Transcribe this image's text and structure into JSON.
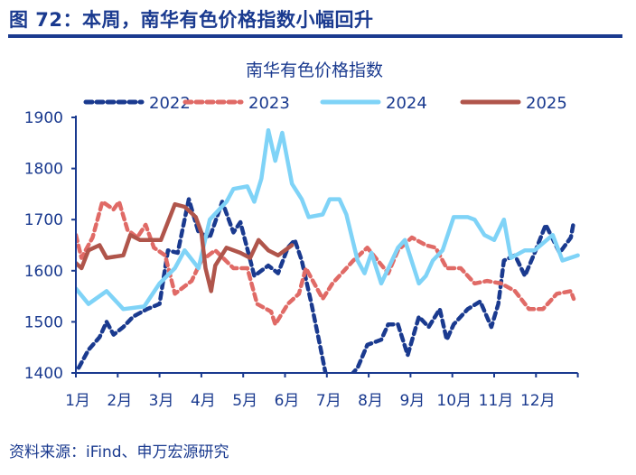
{
  "figure_title": "图 72：本周，南华有色价格指数小幅回升",
  "source": "资料来源：iFind、申万宏源研究",
  "chart_data": {
    "type": "line",
    "title": "南华有色价格指数",
    "xlabel": "",
    "ylabel": "",
    "x_tick_labels": [
      "1月",
      "2月",
      "3月",
      "4月",
      "5月",
      "6月",
      "7月",
      "8月",
      "9月",
      "10月",
      "11月",
      "12月"
    ],
    "y_ticks": [
      1400,
      1500,
      1600,
      1700,
      1800,
      1900
    ],
    "ylim": [
      1400,
      1900
    ],
    "grid": false,
    "legend_position": "top",
    "series": [
      {
        "name": "2022",
        "color": "#1a3a8f",
        "style": "dashed",
        "points": [
          [
            "01-03",
            1410
          ],
          [
            "01-10",
            1445
          ],
          [
            "01-18",
            1470
          ],
          [
            "01-23",
            1500
          ],
          [
            "01-28",
            1475
          ],
          [
            "02-05",
            1490
          ],
          [
            "02-12",
            1510
          ],
          [
            "02-22",
            1525
          ],
          [
            "03-01",
            1535
          ],
          [
            "03-07",
            1640
          ],
          [
            "03-14",
            1635
          ],
          [
            "03-22",
            1740
          ],
          [
            "03-29",
            1675
          ],
          [
            "04-07",
            1665
          ],
          [
            "04-16",
            1735
          ],
          [
            "04-24",
            1675
          ],
          [
            "04-29",
            1695
          ],
          [
            "05-09",
            1590
          ],
          [
            "05-19",
            1610
          ],
          [
            "05-26",
            1595
          ],
          [
            "06-03",
            1645
          ],
          [
            "06-08",
            1660
          ],
          [
            "06-13",
            1620
          ],
          [
            "06-20",
            1535
          ],
          [
            "06-26",
            1455
          ],
          [
            "06-30",
            1400
          ],
          [
            "07-10",
            1370
          ],
          [
            "07-23",
            1410
          ],
          [
            "07-30",
            1455
          ],
          [
            "08-10",
            1465
          ],
          [
            "08-15",
            1495
          ],
          [
            "08-22",
            1495
          ],
          [
            "08-29",
            1435
          ],
          [
            "09-07",
            1510
          ],
          [
            "09-14",
            1490
          ],
          [
            "09-22",
            1525
          ],
          [
            "09-27",
            1465
          ],
          [
            "10-02",
            1495
          ],
          [
            "10-12",
            1525
          ],
          [
            "10-21",
            1540
          ],
          [
            "10-29",
            1490
          ],
          [
            "11-04",
            1535
          ],
          [
            "11-08",
            1620
          ],
          [
            "11-16",
            1630
          ],
          [
            "11-23",
            1590
          ],
          [
            "11-30",
            1635
          ],
          [
            "12-08",
            1690
          ],
          [
            "12-18",
            1635
          ],
          [
            "12-26",
            1665
          ],
          [
            "12-28",
            1695
          ]
        ]
      },
      {
        "name": "2023",
        "color": "#e06a66",
        "style": "dashed",
        "points": [
          [
            "01-01",
            1670
          ],
          [
            "01-05",
            1625
          ],
          [
            "01-13",
            1665
          ],
          [
            "01-20",
            1735
          ],
          [
            "01-28",
            1720
          ],
          [
            "02-02",
            1735
          ],
          [
            "02-08",
            1680
          ],
          [
            "02-15",
            1665
          ],
          [
            "02-21",
            1690
          ],
          [
            "02-27",
            1645
          ],
          [
            "03-05",
            1630
          ],
          [
            "03-12",
            1555
          ],
          [
            "03-24",
            1580
          ],
          [
            "04-01",
            1620
          ],
          [
            "04-11",
            1640
          ],
          [
            "04-24",
            1605
          ],
          [
            "05-04",
            1605
          ],
          [
            "05-11",
            1535
          ],
          [
            "05-21",
            1520
          ],
          [
            "05-24",
            1495
          ],
          [
            "06-03",
            1535
          ],
          [
            "06-11",
            1555
          ],
          [
            "06-16",
            1605
          ],
          [
            "06-28",
            1545
          ],
          [
            "07-05",
            1575
          ],
          [
            "07-20",
            1620
          ],
          [
            "07-30",
            1645
          ],
          [
            "08-15",
            1595
          ],
          [
            "08-22",
            1640
          ],
          [
            "09-02",
            1665
          ],
          [
            "09-12",
            1650
          ],
          [
            "09-19",
            1645
          ],
          [
            "09-27",
            1605
          ],
          [
            "10-07",
            1605
          ],
          [
            "10-17",
            1575
          ],
          [
            "10-26",
            1580
          ],
          [
            "11-06",
            1575
          ],
          [
            "11-16",
            1560
          ],
          [
            "11-26",
            1525
          ],
          [
            "12-06",
            1525
          ],
          [
            "12-16",
            1555
          ],
          [
            "12-26",
            1560
          ],
          [
            "12-28",
            1545
          ]
        ]
      },
      {
        "name": "2024",
        "color": "#7fd3f7",
        "style": "solid",
        "points": [
          [
            "01-01",
            1565
          ],
          [
            "01-10",
            1535
          ],
          [
            "01-23",
            1560
          ],
          [
            "02-05",
            1525
          ],
          [
            "02-20",
            1530
          ],
          [
            "03-01",
            1575
          ],
          [
            "03-12",
            1605
          ],
          [
            "03-19",
            1640
          ],
          [
            "03-29",
            1605
          ],
          [
            "04-07",
            1700
          ],
          [
            "04-19",
            1735
          ],
          [
            "04-24",
            1760
          ],
          [
            "05-04",
            1765
          ],
          [
            "05-09",
            1735
          ],
          [
            "05-14",
            1780
          ],
          [
            "05-19",
            1875
          ],
          [
            "05-24",
            1815
          ],
          [
            "05-29",
            1870
          ],
          [
            "06-06",
            1770
          ],
          [
            "06-13",
            1740
          ],
          [
            "06-18",
            1705
          ],
          [
            "06-28",
            1710
          ],
          [
            "07-03",
            1740
          ],
          [
            "07-10",
            1740
          ],
          [
            "07-15",
            1710
          ],
          [
            "07-23",
            1620
          ],
          [
            "07-28",
            1595
          ],
          [
            "08-03",
            1635
          ],
          [
            "08-10",
            1575
          ],
          [
            "08-22",
            1645
          ],
          [
            "08-27",
            1660
          ],
          [
            "09-07",
            1575
          ],
          [
            "09-12",
            1590
          ],
          [
            "09-17",
            1620
          ],
          [
            "09-24",
            1640
          ],
          [
            "10-02",
            1705
          ],
          [
            "10-12",
            1705
          ],
          [
            "10-17",
            1700
          ],
          [
            "10-24",
            1670
          ],
          [
            "11-01",
            1660
          ],
          [
            "11-08",
            1700
          ],
          [
            "11-13",
            1625
          ],
          [
            "11-23",
            1640
          ],
          [
            "11-30",
            1640
          ],
          [
            "12-13",
            1670
          ],
          [
            "12-20",
            1620
          ],
          [
            "12-31",
            1630
          ]
        ]
      },
      {
        "name": "2025",
        "color": "#b0554b",
        "style": "solid",
        "points": [
          [
            "01-01",
            1615
          ],
          [
            "01-05",
            1605
          ],
          [
            "01-10",
            1640
          ],
          [
            "01-18",
            1650
          ],
          [
            "01-23",
            1625
          ],
          [
            "02-05",
            1630
          ],
          [
            "02-10",
            1670
          ],
          [
            "02-17",
            1660
          ],
          [
            "02-25",
            1660
          ],
          [
            "03-02",
            1660
          ],
          [
            "03-12",
            1730
          ],
          [
            "03-19",
            1725
          ],
          [
            "03-27",
            1705
          ],
          [
            "04-01",
            1675
          ],
          [
            "04-04",
            1605
          ],
          [
            "04-08",
            1560
          ],
          [
            "04-11",
            1610
          ],
          [
            "04-19",
            1645
          ],
          [
            "04-29",
            1635
          ],
          [
            "05-06",
            1625
          ],
          [
            "05-12",
            1660
          ],
          [
            "05-19",
            1640
          ],
          [
            "05-26",
            1630
          ],
          [
            "06-06",
            1650
          ]
        ]
      }
    ]
  }
}
